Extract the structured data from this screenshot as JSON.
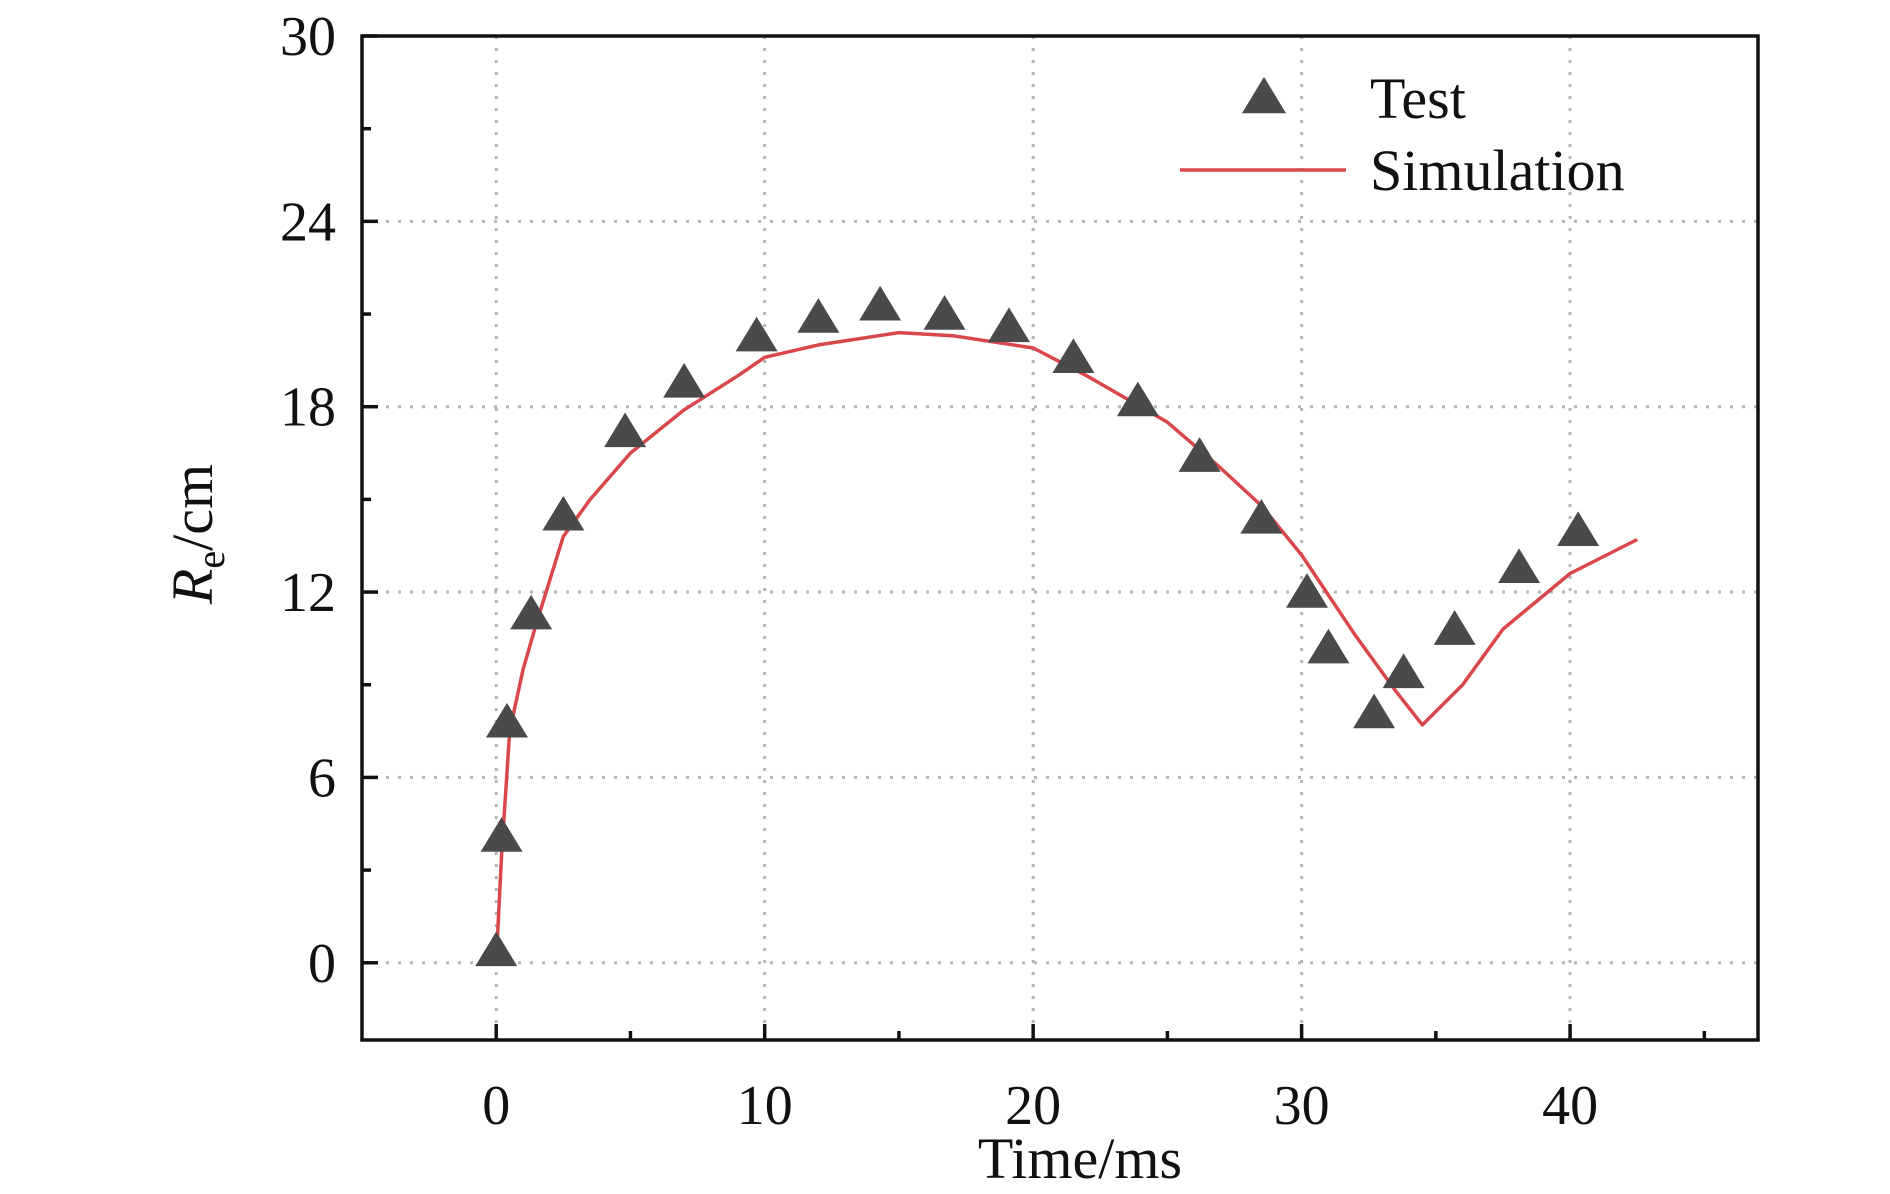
{
  "chart_data": {
    "type": "line",
    "xlabel": "Time/ms",
    "ylabel": "R",
    "ylabel_subscript": "e",
    "ylabel_suffix": "/cm",
    "xlim": [
      -5,
      47
    ],
    "ylim": [
      -2.5,
      30
    ],
    "xticks": [
      0,
      10,
      20,
      30,
      40
    ],
    "xtick_labels": [
      "0",
      "10",
      "20",
      "30",
      "40"
    ],
    "yticks": [
      0,
      6,
      12,
      18,
      24,
      30
    ],
    "ytick_labels": [
      "0",
      "6",
      "12",
      "18",
      "24",
      "30"
    ],
    "grid": true,
    "legend_position": "top-right",
    "series": [
      {
        "name": "Test",
        "kind": "scatter",
        "marker": "triangle",
        "color": "#4a4a4a",
        "x": [
          0.0,
          0.2,
          0.4,
          1.3,
          2.5,
          4.8,
          7.0,
          9.7,
          12.0,
          14.3,
          16.7,
          19.1,
          21.5,
          23.9,
          26.2,
          28.5,
          30.2,
          31.0,
          32.7,
          33.8,
          35.7,
          38.1,
          40.3
        ],
        "y": [
          0.3,
          4.0,
          7.7,
          11.2,
          14.4,
          17.1,
          18.7,
          20.2,
          20.8,
          21.2,
          20.9,
          20.5,
          19.5,
          18.1,
          16.3,
          14.3,
          11.9,
          10.1,
          8.0,
          9.3,
          10.7,
          12.7,
          13.9
        ]
      },
      {
        "name": "Simulation",
        "kind": "line",
        "color": "#d9474b",
        "x": [
          0.0,
          0.2,
          0.5,
          1.0,
          1.5,
          2.5,
          3.5,
          5.0,
          7.0,
          9.0,
          10.0,
          12.0,
          15.0,
          17.0,
          20.0,
          22.0,
          25.0,
          27.0,
          28.5,
          30.0,
          32.0,
          33.5,
          34.5,
          36.0,
          37.5,
          40.0,
          42.5
        ],
        "y": [
          0.0,
          3.5,
          7.5,
          9.5,
          11.0,
          13.8,
          15.0,
          16.5,
          17.9,
          19.0,
          19.6,
          20.0,
          20.4,
          20.3,
          19.9,
          19.0,
          17.5,
          16.0,
          14.8,
          13.2,
          10.6,
          8.8,
          7.7,
          9.0,
          10.8,
          12.6,
          13.7
        ]
      }
    ]
  }
}
